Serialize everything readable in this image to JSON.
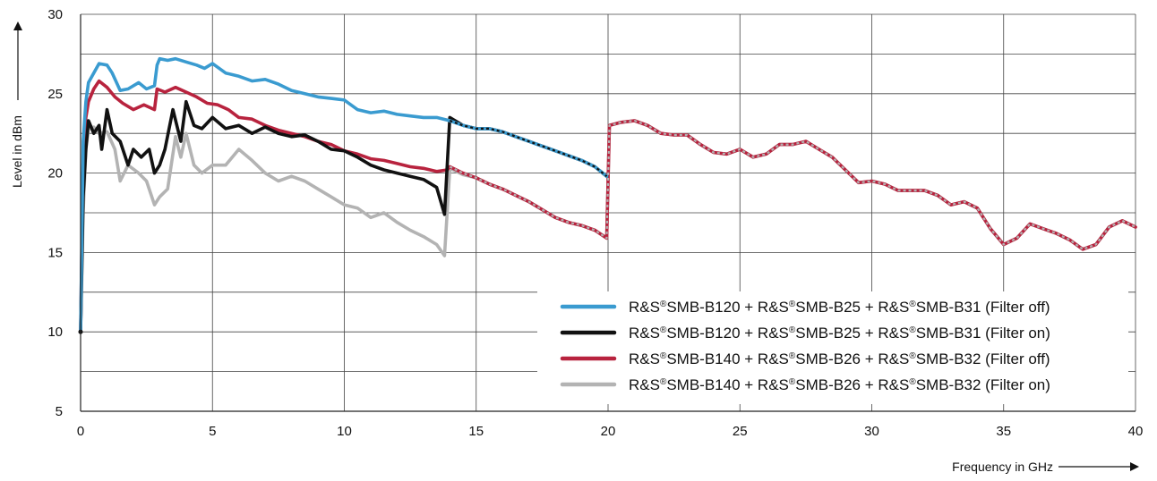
{
  "chart_data": {
    "type": "line",
    "xlabel": "Frequency in GHz",
    "ylabel": "Level in dBm",
    "xlim": [
      0,
      40
    ],
    "ylim": [
      5,
      30
    ],
    "xticks": [
      0,
      5,
      10,
      15,
      20,
      25,
      30,
      35,
      40
    ],
    "yticks": [
      5,
      10,
      15,
      20,
      25,
      30
    ],
    "grid": true,
    "legend_position": "bottom-right",
    "series": [
      {
        "name": "R&S®SMB-B120 + R&S®SMB-B25 + R&S®SMB-B31 (Filter off)",
        "color": "#3a9bd0",
        "x": [
          0,
          0.1,
          0.2,
          0.3,
          0.5,
          0.7,
          1.0,
          1.2,
          1.5,
          1.8,
          2.2,
          2.5,
          2.8,
          2.9,
          3.0,
          3.3,
          3.6,
          4.0,
          4.4,
          4.7,
          5.0,
          5.5,
          6.0,
          6.5,
          7.0,
          7.5,
          8.0,
          8.5,
          9.0,
          9.5,
          10.0,
          10.5,
          11.0,
          11.5,
          12.0,
          12.5,
          13.0,
          13.5,
          14.0,
          14.5,
          15.0,
          15.5,
          16.0,
          16.5,
          17.0,
          17.5,
          18.0,
          18.5,
          19.0,
          19.5,
          19.95
        ],
        "y": [
          10,
          22,
          24.5,
          25.7,
          26.3,
          26.9,
          26.8,
          26.3,
          25.2,
          25.3,
          25.7,
          25.3,
          25.5,
          26.8,
          27.2,
          27.1,
          27.2,
          27.0,
          26.8,
          26.6,
          26.9,
          26.3,
          26.1,
          25.8,
          25.9,
          25.6,
          25.2,
          25.0,
          24.8,
          24.7,
          24.6,
          24.0,
          23.8,
          23.9,
          23.7,
          23.6,
          23.5,
          23.5,
          23.3,
          23.0,
          22.8,
          22.8,
          22.6,
          22.3,
          22.0,
          21.7,
          21.4,
          21.1,
          20.8,
          20.4,
          19.8
        ]
      },
      {
        "name": "R&S®SMB-B120 + R&S®SMB-B25 + R&S®SMB-B31 (Filter on)",
        "color": "#111111",
        "x": [
          0,
          0.1,
          0.2,
          0.3,
          0.5,
          0.7,
          0.8,
          1.0,
          1.2,
          1.5,
          1.8,
          2.0,
          2.3,
          2.6,
          2.8,
          3.0,
          3.2,
          3.5,
          3.8,
          4.0,
          4.3,
          4.6,
          5.0,
          5.5,
          6.0,
          6.5,
          7.0,
          7.5,
          8.0,
          8.5,
          9.0,
          9.5,
          10.0,
          10.5,
          11.0,
          11.5,
          12.0,
          12.5,
          13.0,
          13.5,
          13.8,
          14.0,
          14.5,
          15.0,
          15.5,
          16.0,
          16.5,
          17.0,
          17.5,
          18.0,
          18.5,
          19.0,
          19.5,
          19.95
        ],
        "y": [
          10,
          18.5,
          21.5,
          23.3,
          22.5,
          23.0,
          21.5,
          24.0,
          22.5,
          22.0,
          20.5,
          21.5,
          21.0,
          21.5,
          20.0,
          20.5,
          21.5,
          24.0,
          22.0,
          24.5,
          23.0,
          22.8,
          23.5,
          22.8,
          23.0,
          22.5,
          22.9,
          22.5,
          22.3,
          22.4,
          22.0,
          21.5,
          21.4,
          21.0,
          20.5,
          20.2,
          20.0,
          19.8,
          19.6,
          19.1,
          17.4,
          23.5,
          23.0,
          22.8,
          22.8,
          22.6,
          22.3,
          22.0,
          21.7,
          21.4,
          21.1,
          20.8,
          20.4,
          19.8
        ]
      },
      {
        "name": "R&S®SMB-B140 + R&S®SMB-B26 + R&S®SMB-B32 (Filter off)",
        "color": "#b8233e",
        "x": [
          0,
          0.1,
          0.2,
          0.3,
          0.5,
          0.7,
          1.0,
          1.3,
          1.6,
          2.0,
          2.4,
          2.8,
          2.9,
          3.2,
          3.6,
          4.0,
          4.4,
          4.8,
          5.2,
          5.6,
          6.0,
          6.5,
          7.0,
          7.5,
          8.0,
          8.5,
          9.0,
          9.5,
          10.0,
          10.5,
          11.0,
          11.5,
          12.0,
          12.5,
          13.0,
          13.5,
          13.9,
          14.0,
          14.5,
          15.0,
          15.5,
          16.0,
          16.5,
          17.0,
          17.5,
          18.0,
          18.5,
          19.0,
          19.5,
          19.95,
          20.05,
          20.5,
          21.0,
          21.5,
          22.0,
          22.5,
          23.0,
          23.5,
          24.0,
          24.5,
          25.0,
          25.5,
          26.0,
          26.5,
          27.0,
          27.5,
          28.0,
          28.5,
          29.0,
          29.5,
          30.0,
          30.5,
          31.0,
          31.5,
          32.0,
          32.5,
          33.0,
          33.5,
          34.0,
          34.5,
          35.0,
          35.5,
          36.0,
          36.5,
          37.0,
          37.5,
          38.0,
          38.5,
          39.0,
          39.5,
          40.0
        ],
        "y": [
          10,
          21,
          23.5,
          24.5,
          25.3,
          25.8,
          25.4,
          24.8,
          24.4,
          24.0,
          24.3,
          24.0,
          25.3,
          25.1,
          25.4,
          25.1,
          24.8,
          24.4,
          24.3,
          24.0,
          23.5,
          23.4,
          23.0,
          22.7,
          22.5,
          22.3,
          22.0,
          21.8,
          21.4,
          21.2,
          20.9,
          20.8,
          20.6,
          20.4,
          20.3,
          20.1,
          20.2,
          20.4,
          20.0,
          19.7,
          19.3,
          19.0,
          18.6,
          18.2,
          17.7,
          17.2,
          16.9,
          16.7,
          16.4,
          15.9,
          23.0,
          23.2,
          23.3,
          23.0,
          22.5,
          22.4,
          22.4,
          21.8,
          21.3,
          21.2,
          21.5,
          21.0,
          21.2,
          21.8,
          21.8,
          22.0,
          21.5,
          21.0,
          20.2,
          19.4,
          19.5,
          19.3,
          18.9,
          18.9,
          18.9,
          18.6,
          18.0,
          18.2,
          17.8,
          16.5,
          15.5,
          15.9,
          16.8,
          16.5,
          16.2,
          15.8,
          15.2,
          15.5,
          16.6,
          17.0,
          16.6
        ]
      },
      {
        "name": "R&S®SMB-B140 + R&S®SMB-B26 + R&S®SMB-B32 (Filter on)",
        "color": "#b3b3b3",
        "x": [
          0,
          0.1,
          0.2,
          0.3,
          0.5,
          0.7,
          1.0,
          1.3,
          1.5,
          1.8,
          2.2,
          2.5,
          2.8,
          3.0,
          3.3,
          3.6,
          3.8,
          4.0,
          4.3,
          4.6,
          5.0,
          5.5,
          6.0,
          6.5,
          7.0,
          7.5,
          8.0,
          8.5,
          9.0,
          9.5,
          10.0,
          10.5,
          11.0,
          11.5,
          12.0,
          12.5,
          13.0,
          13.5,
          13.8,
          14.0,
          14.5,
          15.0,
          15.5,
          16.0,
          16.5,
          17.0,
          17.5,
          18.0,
          18.5,
          19.0,
          19.5,
          19.95,
          20.05,
          20.5,
          21.0,
          21.5,
          22.0,
          22.5,
          23.0,
          23.5,
          24.0,
          24.5,
          25.0,
          25.5,
          26.0,
          26.5,
          27.0,
          27.5,
          28.0,
          28.5,
          29.0,
          29.5,
          30.0,
          30.5,
          31.0,
          31.5,
          32.0,
          32.5,
          33.0,
          33.5,
          34.0,
          34.5,
          35.0,
          35.5,
          36.0,
          36.5,
          37.0,
          37.5,
          38.0,
          38.5,
          39.0,
          39.5,
          40.0
        ],
        "y": [
          10,
          17.5,
          21.5,
          22.8,
          22.9,
          22.5,
          22.6,
          21.5,
          19.5,
          20.5,
          20.0,
          19.5,
          18.0,
          18.5,
          19.0,
          22.3,
          21.0,
          22.5,
          20.5,
          20.0,
          20.5,
          20.5,
          21.5,
          20.8,
          20.0,
          19.5,
          19.8,
          19.5,
          19.0,
          18.5,
          18.0,
          17.8,
          17.2,
          17.5,
          16.9,
          16.4,
          16.0,
          15.5,
          14.8,
          20.3,
          19.9,
          19.7,
          19.3,
          19.0,
          18.6,
          18.2,
          17.7,
          17.2,
          16.9,
          16.7,
          16.4,
          15.9,
          23.0,
          23.2,
          23.3,
          23.0,
          22.5,
          22.4,
          22.4,
          21.8,
          21.3,
          21.2,
          21.5,
          21.0,
          21.2,
          21.8,
          21.8,
          22.0,
          21.5,
          21.0,
          20.2,
          19.4,
          19.5,
          19.3,
          18.9,
          18.9,
          18.9,
          18.6,
          18.0,
          18.2,
          17.8,
          16.5,
          15.5,
          15.9,
          16.8,
          16.5,
          16.2,
          15.8,
          15.2,
          15.5,
          16.6,
          17.0,
          16.6
        ]
      }
    ]
  },
  "legend": {
    "entries": [
      {
        "parts": [
          "R&S",
          "®",
          "SMB-B120 + R&S",
          "®",
          "SMB-B25 + R&S",
          "®",
          "SMB-B31 (Filter off)"
        ],
        "color": "#3a9bd0"
      },
      {
        "parts": [
          "R&S",
          "®",
          "SMB-B120 + R&S",
          "®",
          "SMB-B25 + R&S",
          "®",
          "SMB-B31 (Filter on)"
        ],
        "color": "#111111"
      },
      {
        "parts": [
          "R&S",
          "®",
          "SMB-B140 + R&S",
          "®",
          "SMB-B26 + R&S",
          "®",
          "SMB-B32 (Filter off)"
        ],
        "color": "#b8233e"
      },
      {
        "parts": [
          "R&S",
          "®",
          "SMB-B140 + R&S",
          "®",
          "SMB-B26 + R&S",
          "®",
          "SMB-B32 (Filter on)"
        ],
        "color": "#b3b3b3"
      }
    ]
  }
}
